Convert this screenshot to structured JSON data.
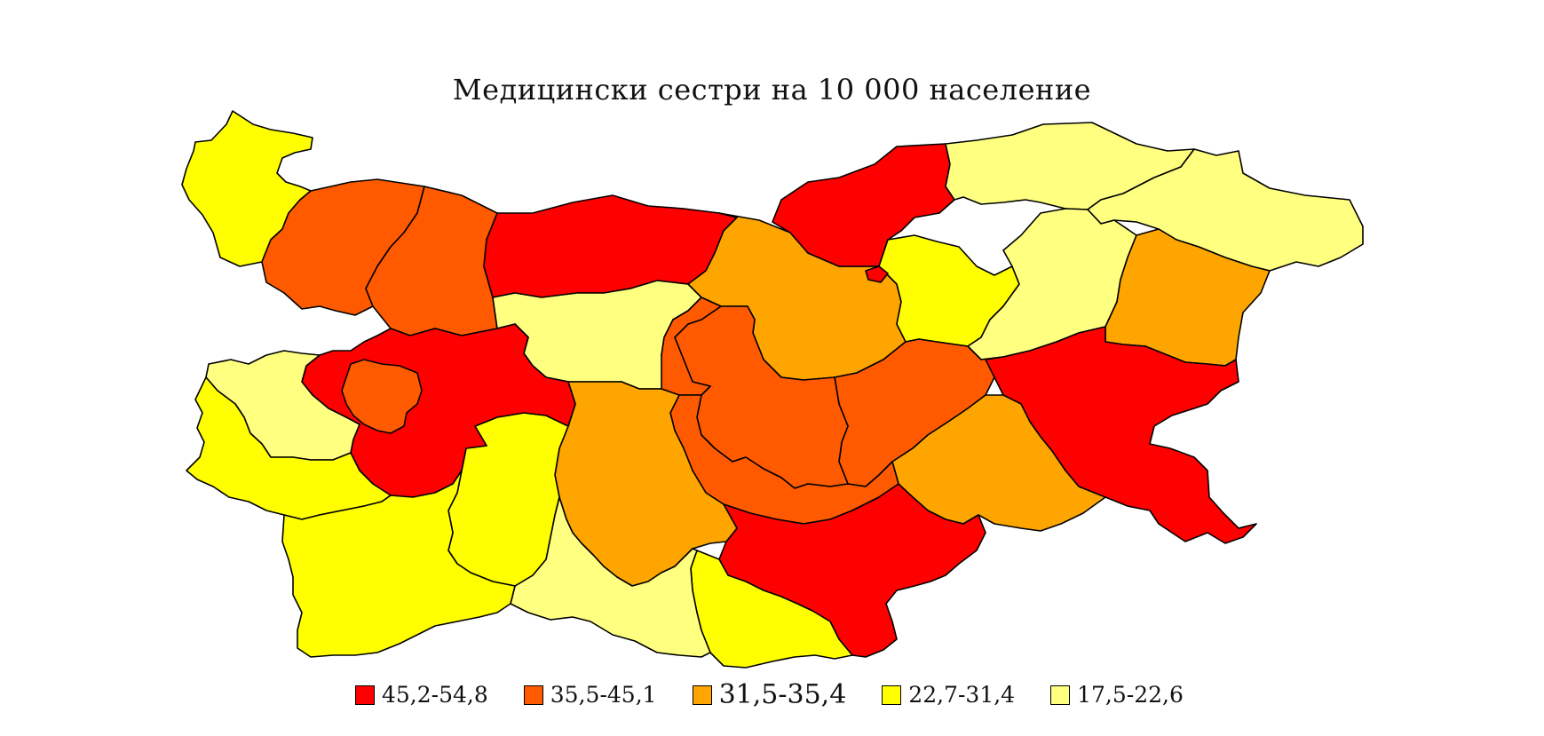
{
  "title": "Медицински сестри на 10 000 население",
  "colors": {
    "c1": "#FF0000",
    "c2": "#FF5A00",
    "c3": "#FFA500",
    "c4": "#FFFF00",
    "c5": "#FFFF80"
  },
  "legend": [
    {
      "label": "45,2-54,8",
      "color": "#FF0000"
    },
    {
      "label": "35,5-45,1",
      "color": "#FF5A00"
    },
    {
      "label": "31,5-35,4",
      "color": "#FFA500"
    },
    {
      "label": "22,7-31,4",
      "color": "#FFFF00"
    },
    {
      "label": "17,5-22,6",
      "color": "#FFFF80"
    }
  ]
}
